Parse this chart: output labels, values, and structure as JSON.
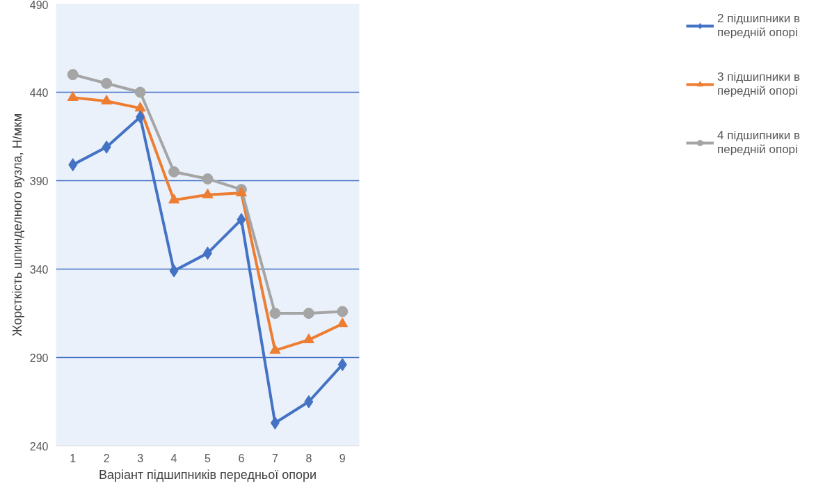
{
  "chart_data": {
    "type": "line",
    "xlabel": "Варіант підшипників передньої опори",
    "ylabel": "Жорсткість шпинделного вузла, Н/мкм",
    "categories": [
      "1",
      "2",
      "3",
      "4",
      "5",
      "6",
      "7",
      "8",
      "9"
    ],
    "ylim": [
      240,
      490
    ],
    "yticks": [
      240,
      290,
      340,
      390,
      440,
      490
    ],
    "grid": "y",
    "legend": "right",
    "line_style": "solid",
    "series": [
      {
        "name": "2 підшипники в передній опорі",
        "color": "#4472c4",
        "marker": "diamond",
        "values": [
          399,
          409,
          426,
          339,
          349,
          368,
          253,
          265,
          286
        ]
      },
      {
        "name": "3 підшипники в передній опорі",
        "color": "#ed7d31",
        "marker": "triangle",
        "values": [
          437,
          435,
          431,
          379,
          382,
          383,
          294,
          300,
          309
        ]
      },
      {
        "name": "4 підшипники в передній опорі",
        "color": "#a5a5a5",
        "marker": "circle",
        "values": [
          450,
          445,
          440,
          395,
          391,
          385,
          315,
          315,
          316
        ]
      }
    ]
  }
}
